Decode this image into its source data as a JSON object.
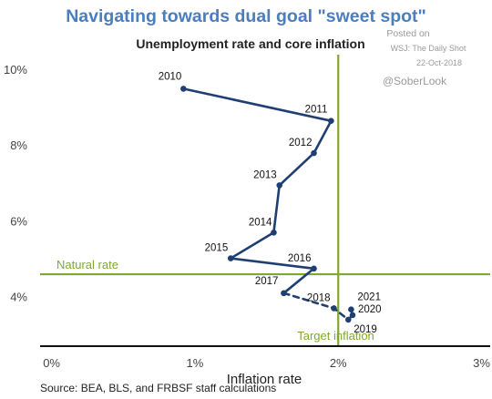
{
  "chart_data": {
    "type": "scatter",
    "title": "Navigating towards dual goal \"sweet spot\"",
    "subtitle": "Unemployment rate and core inflation",
    "xlabel": "Inflation rate",
    "ylabel": "",
    "xlim": [
      -0.08,
      3.06
    ],
    "ylim": [
      2.7,
      10.4
    ],
    "x_ticks": [
      "0%",
      "1%",
      "2%",
      "3%"
    ],
    "x_tick_values": [
      0,
      1,
      2,
      3
    ],
    "y_ticks": [
      "4%",
      "6%",
      "8%",
      "10%"
    ],
    "y_tick_values": [
      4,
      6,
      8,
      10
    ],
    "grid": false,
    "series": [
      {
        "style": "solid",
        "points": [
          {
            "label": "2010",
            "x": 0.92,
            "y": 9.5
          },
          {
            "label": "2011",
            "x": 1.95,
            "y": 8.65
          },
          {
            "label": "2012",
            "x": 1.83,
            "y": 7.8
          },
          {
            "label": "2013",
            "x": 1.59,
            "y": 6.95
          },
          {
            "label": "2014",
            "x": 1.55,
            "y": 5.7
          },
          {
            "label": "2015",
            "x": 1.25,
            "y": 5.02
          },
          {
            "label": "2016",
            "x": 1.83,
            "y": 4.75
          }
        ]
      },
      {
        "style": "dashed",
        "points": [
          {
            "label": "2017",
            "x": 1.62,
            "y": 4.1
          },
          {
            "label": "2018",
            "x": 1.97,
            "y": 3.7
          },
          {
            "label": "2019",
            "x": 2.07,
            "y": 3.4
          },
          {
            "label": "2020",
            "x": 2.1,
            "y": 3.52
          },
          {
            "label": "2021",
            "x": 2.09,
            "y": 3.67
          }
        ]
      }
    ],
    "reference_lines": [
      {
        "label": "Natural rate",
        "orientation": "horizontal",
        "value": 4.6
      },
      {
        "label": "Target inflation",
        "orientation": "vertical",
        "value": 2.0
      }
    ],
    "source": "Source: BEA, BLS, and FRBSF staff calculations"
  },
  "watermark": {
    "posted_on": "Posted on",
    "publication": "WSJ: The Daily Shot",
    "date": "22-Oct-2018",
    "handle": "@SoberLook"
  },
  "colors": {
    "title": "#4a7ebf",
    "series": "#1f3f73",
    "reference": "#7fa82e",
    "axis": "#111111"
  }
}
